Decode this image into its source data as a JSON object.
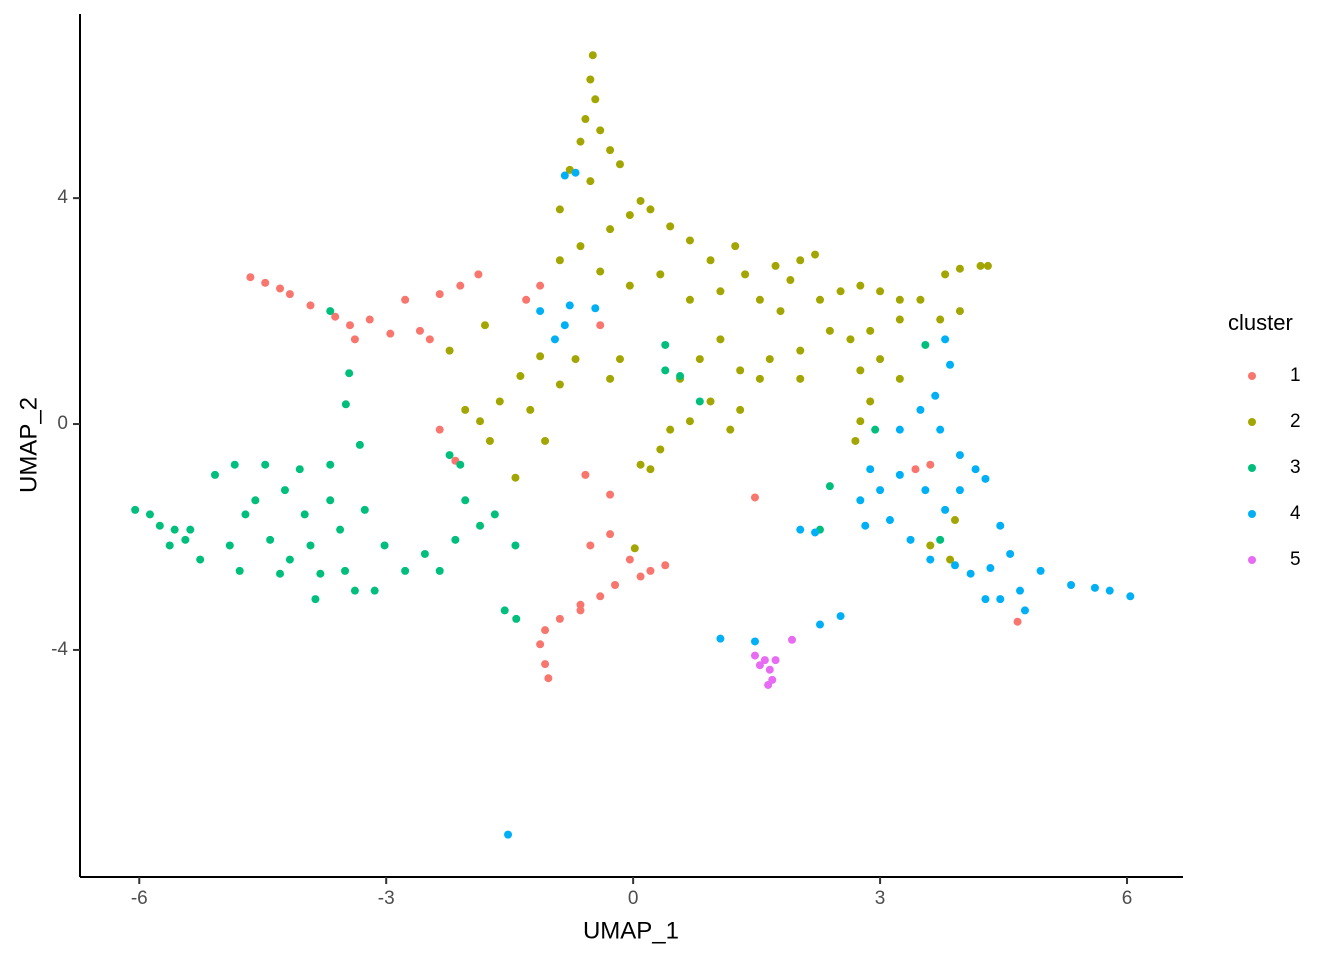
{
  "chart_data": {
    "type": "scatter",
    "x_label": "UMAP_1",
    "y_label": "UMAP_2",
    "legend_title": "cluster",
    "legend_position": "right",
    "xlim": [
      -6.72,
      6.68
    ],
    "ylim": [
      -8.02,
      7.26
    ],
    "xticks": [
      -6,
      -3,
      0,
      3,
      6
    ],
    "yticks": [
      -4,
      0,
      4
    ],
    "series": [
      {
        "name": "1",
        "color": "#F8766D",
        "x": [
          -4.65,
          -4.47,
          -4.29,
          -4.17,
          -3.92,
          -3.62,
          -3.44,
          -3.2,
          -2.95,
          -2.77,
          -2.59,
          -2.35,
          -2.1,
          -1.88,
          -3.38,
          -2.47,
          -1.13,
          -1.3,
          -0.4,
          -2.35,
          -2.16,
          -0.58,
          -0.28,
          -0.52,
          -0.28,
          -0.04,
          0.21,
          0.39,
          -0.22,
          -0.4,
          -0.64,
          -0.89,
          -1.07,
          -1.13,
          -1.07,
          -1.03,
          -0.64,
          0.09,
          1.48,
          3.43,
          3.61,
          4.67
        ],
        "values": [
          2.6,
          2.5,
          2.4,
          2.3,
          2.1,
          1.9,
          1.75,
          1.85,
          1.6,
          2.2,
          1.65,
          2.3,
          2.45,
          2.65,
          1.5,
          1.5,
          2.45,
          2.2,
          1.75,
          -0.1,
          -0.65,
          -0.9,
          -1.25,
          -2.15,
          -1.95,
          -2.4,
          -2.6,
          -2.5,
          -2.85,
          -3.05,
          -3.2,
          -3.45,
          -3.65,
          -3.9,
          -4.25,
          -4.5,
          -3.3,
          -2.7,
          -1.3,
          -0.8,
          -0.72,
          -3.5
        ]
      },
      {
        "name": "2",
        "color": "#A3A500",
        "x": [
          -0.49,
          -0.52,
          -0.46,
          -0.58,
          -0.4,
          -0.64,
          -0.28,
          -0.16,
          -0.77,
          -0.52,
          0.09,
          -0.04,
          -0.89,
          -0.28,
          0.21,
          0.45,
          0.69,
          0.94,
          1.24,
          -0.64,
          -0.89,
          -0.4,
          -0.04,
          0.33,
          0.69,
          1.06,
          1.36,
          1.73,
          2.03,
          2.21,
          1.91,
          1.54,
          1.79,
          2.27,
          2.52,
          2.76,
          3.0,
          3.24,
          3.49,
          3.79,
          3.97,
          4.22,
          4.31,
          3.97,
          3.73,
          3.24,
          2.88,
          2.64,
          2.39,
          2.03,
          1.66,
          1.3,
          1.54,
          2.03,
          2.76,
          3.0,
          3.24,
          2.88,
          2.76,
          2.7,
          1.06,
          0.81,
          0.57,
          0.94,
          0.69,
          0.45,
          1.18,
          1.3,
          0.33,
          0.21,
          0.09,
          -1.13,
          -1.37,
          -1.62,
          -1.86,
          -2.04,
          -1.74,
          -1.25,
          -1.07,
          -1.43,
          -0.89,
          -0.7,
          -0.16,
          -0.28,
          -1.8,
          -2.23,
          3.61,
          3.85,
          3.91,
          0.02
        ],
        "values": [
          6.53,
          6.1,
          5.75,
          5.4,
          5.2,
          5.0,
          4.85,
          4.6,
          4.5,
          4.3,
          3.95,
          3.7,
          3.8,
          3.45,
          3.8,
          3.5,
          3.25,
          2.9,
          3.15,
          3.15,
          2.9,
          2.7,
          2.45,
          2.65,
          2.2,
          2.35,
          2.65,
          2.8,
          2.9,
          3.0,
          2.55,
          2.2,
          2.0,
          2.2,
          2.35,
          2.45,
          2.35,
          2.2,
          2.2,
          2.65,
          2.75,
          2.8,
          2.8,
          2.0,
          1.85,
          1.85,
          1.65,
          1.5,
          1.65,
          1.3,
          1.15,
          0.95,
          0.8,
          0.8,
          0.95,
          1.15,
          0.8,
          0.4,
          0.05,
          -0.3,
          1.5,
          1.15,
          0.8,
          0.4,
          0.05,
          -0.1,
          -0.1,
          0.25,
          -0.45,
          -0.8,
          -0.72,
          1.2,
          0.85,
          0.4,
          0.05,
          0.25,
          -0.3,
          0.25,
          -0.3,
          -0.95,
          0.7,
          1.15,
          1.15,
          0.8,
          1.75,
          1.3,
          -2.15,
          -2.4,
          -1.7,
          -2.2
        ]
      },
      {
        "name": "3",
        "color": "#00BF7D",
        "x": [
          -6.05,
          -5.87,
          -5.75,
          -5.57,
          -5.44,
          -5.63,
          -5.26,
          -5.08,
          -4.84,
          -4.71,
          -4.9,
          -4.78,
          -4.59,
          -4.47,
          -4.41,
          -4.23,
          -4.17,
          -4.05,
          -3.99,
          -3.92,
          -3.8,
          -3.86,
          -3.68,
          -3.68,
          -3.56,
          -3.5,
          -3.38,
          -3.32,
          -3.26,
          -3.14,
          -3.02,
          -2.77,
          -2.53,
          -2.35,
          -2.16,
          -2.04,
          -1.86,
          -1.68,
          -1.43,
          -2.1,
          -2.23,
          -3.49,
          -3.45,
          -3.68,
          -4.29,
          -5.38,
          -1.56,
          -1.42,
          0.39,
          0.57,
          0.81,
          0.39,
          2.94,
          2.39,
          2.27,
          3.55,
          3.73
        ],
        "values": [
          -1.52,
          -1.6,
          -1.8,
          -1.87,
          -2.05,
          -2.15,
          -2.4,
          -0.9,
          -0.72,
          -1.6,
          -2.15,
          -2.6,
          -1.35,
          -0.72,
          -2.05,
          -1.17,
          -2.4,
          -0.8,
          -1.6,
          -2.15,
          -2.65,
          -3.1,
          -0.72,
          -1.35,
          -1.87,
          -2.6,
          -2.95,
          -0.37,
          -1.52,
          -2.95,
          -2.15,
          -2.6,
          -2.3,
          -2.6,
          -2.05,
          -1.35,
          -1.8,
          -1.6,
          -2.15,
          -0.72,
          -0.55,
          0.35,
          0.9,
          2.0,
          -2.65,
          -1.87,
          -3.3,
          -3.45,
          1.4,
          0.85,
          0.4,
          0.95,
          -0.1,
          -1.1,
          -1.87,
          1.4,
          -2.05
        ]
      },
      {
        "name": "4",
        "color": "#00B0F6",
        "x": [
          -0.83,
          -0.7,
          -1.13,
          -0.77,
          -0.83,
          -0.46,
          -0.95,
          3.79,
          3.85,
          3.67,
          3.49,
          3.73,
          3.97,
          4.16,
          3.97,
          3.79,
          3.55,
          3.24,
          3.0,
          2.76,
          2.82,
          3.12,
          3.37,
          3.61,
          3.91,
          4.1,
          4.34,
          4.46,
          4.58,
          4.28,
          4.46,
          4.7,
          4.76,
          4.95,
          5.32,
          5.61,
          5.79,
          6.04,
          2.03,
          2.21,
          3.24,
          2.27,
          2.52,
          1.06,
          1.48,
          2.88,
          4.28,
          -1.52
        ],
        "values": [
          4.4,
          4.45,
          2.0,
          2.1,
          1.75,
          2.05,
          1.5,
          1.5,
          1.05,
          0.5,
          0.25,
          -0.1,
          -0.55,
          -0.8,
          -1.17,
          -1.52,
          -1.17,
          -0.9,
          -1.17,
          -1.35,
          -1.8,
          -1.7,
          -2.05,
          -2.4,
          -2.5,
          -2.65,
          -2.55,
          -1.8,
          -2.3,
          -3.1,
          -3.1,
          -2.95,
          -3.3,
          -2.6,
          -2.85,
          -2.9,
          -2.95,
          -3.05,
          -1.87,
          -1.92,
          -0.1,
          -3.55,
          -3.4,
          -3.8,
          -3.85,
          -0.8,
          -0.97,
          -7.27
        ]
      },
      {
        "name": "5",
        "color": "#E76BF3",
        "x": [
          1.48,
          1.6,
          1.66,
          1.73,
          1.54,
          1.64,
          1.69,
          1.93
        ],
        "values": [
          -4.1,
          -4.18,
          -4.35,
          -4.18,
          -4.27,
          -4.62,
          -4.53,
          -3.82
        ]
      }
    ]
  }
}
